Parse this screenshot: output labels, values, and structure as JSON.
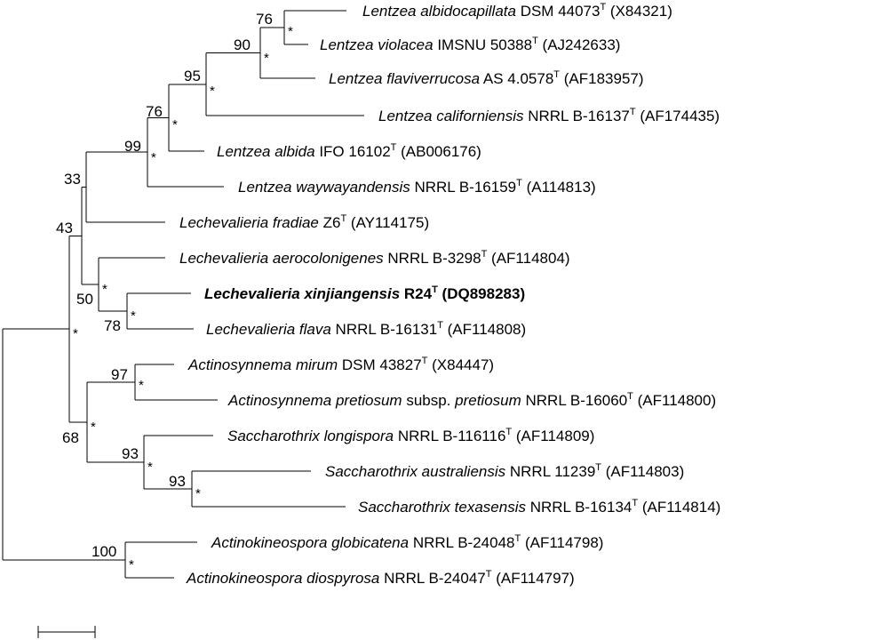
{
  "tree": {
    "star_symbol": "*",
    "taxa": [
      {
        "genus_species": "Lentzea albidocapillata",
        "strain": "DSM 44073",
        "sup": "T",
        "accession": "(X84321)",
        "bold": false
      },
      {
        "genus_species": "Lentzea violacea",
        "strain": "IMSNU 50388",
        "sup": "T",
        "accession": "(AJ242633)",
        "bold": false
      },
      {
        "genus_species": "Lentzea flaviverrucosa",
        "strain": "AS 4.0578",
        "sup": "T",
        "accession": "(AF183957)",
        "bold": false
      },
      {
        "genus_species": "Lentzea californiensis",
        "strain": "NRRL B-16137",
        "sup": "T",
        "accession": "(AF174435)",
        "bold": false
      },
      {
        "genus_species": "Lentzea albida",
        "strain": "IFO 16102",
        "sup": "T",
        "accession": "(AB006176)",
        "bold": false
      },
      {
        "genus_species": "Lentzea waywayandensis",
        "strain": "NRRL B-16159",
        "sup": "T",
        "accession": "(A114813)",
        "bold": false
      },
      {
        "genus_species": "Lechevalieria fradiae",
        "strain": "Z6",
        "sup": "T",
        "accession": "(AY114175)",
        "bold": false
      },
      {
        "genus_species": "Lechevalieria aerocolonigenes",
        "strain": "NRRL B-3298",
        "sup": "T",
        "accession": "(AF114804)",
        "bold": false
      },
      {
        "genus_species": "Lechevalieria xinjiangensis",
        "strain": "R24",
        "sup": "T",
        "accession": "(DQ898283)",
        "bold": true
      },
      {
        "genus_species": "Lechevalieria flava",
        "strain": "NRRL B-16131",
        "sup": "T",
        "accession": "(AF114808)",
        "bold": false
      },
      {
        "genus_species": "Actinosynnema mirum",
        "strain": "DSM 43827",
        "sup": "T",
        "accession": "(X84447)",
        "bold": false
      },
      {
        "genus_species": "Actinosynnema pretiosum",
        "subsp_word": "subsp.",
        "subsp_name": "pretiosum",
        "strain": "NRRL B-16060",
        "sup": "T",
        "accession": "(AF114800)",
        "bold": false
      },
      {
        "genus_species": "Saccharothrix longispora",
        "strain": "NRRL B-116116",
        "sup": "T",
        "accession": "(AF114809)",
        "bold": false
      },
      {
        "genus_species": "Saccharothrix australiensis",
        "strain": "NRRL 11239",
        "sup": "T",
        "accession": "(AF114803)",
        "bold": false
      },
      {
        "genus_species": "Saccharothrix texasensis",
        "strain": "NRRL B-16134",
        "sup": "T",
        "accession": "(AF114814)",
        "bold": false
      },
      {
        "genus_species": "Actinokineospora globicatena",
        "strain": "NRRL B-24048",
        "sup": "T",
        "accession": "(AF114798)",
        "bold": false
      },
      {
        "genus_species": "Actinokineospora diospyrosa",
        "strain": "NRRL B-24047",
        "sup": "T",
        "accession": "(AF114797)",
        "bold": false
      }
    ],
    "bootstrap": [
      "76",
      "90",
      "95",
      "76",
      "99",
      "33",
      "43",
      "50",
      "78",
      "97",
      "93",
      "93",
      "68",
      "100"
    ]
  }
}
